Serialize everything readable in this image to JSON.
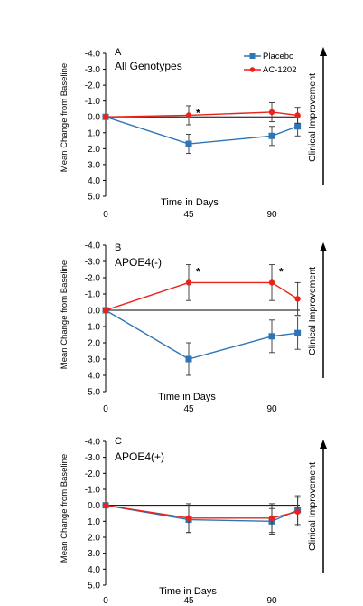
{
  "legend": {
    "placement": "top-right of panel A",
    "items": [
      {
        "label": "Placebo",
        "color": "#2e75b6",
        "marker": "square"
      },
      {
        "label": "AC-1202",
        "color": "#e8241a",
        "marker": "circle"
      }
    ]
  },
  "chart_data": [
    {
      "type": "line",
      "panel_letter": "A",
      "title": "All Genotypes",
      "xlabel": "Time in Days",
      "ylabel": "Mean Change from Baseline",
      "right_label": "Clinical Improvement",
      "x_ticks": [
        "0",
        "45",
        "90"
      ],
      "y_ticks": [
        "-4.0",
        "-3.0",
        "-2.0",
        "-1.0",
        "0.0",
        "1.0",
        "2.0",
        "3.0",
        "4.0",
        "5.0"
      ],
      "ylim": [
        -4.0,
        5.0
      ],
      "y_inverted": true,
      "x_days": [
        0,
        45,
        90,
        104
      ],
      "series": [
        {
          "name": "Placebo",
          "values": [
            0.0,
            1.7,
            1.2,
            0.6
          ],
          "errors": [
            0,
            0.6,
            0.6,
            0.6
          ]
        },
        {
          "name": "AC-1202",
          "values": [
            0.0,
            -0.1,
            -0.3,
            -0.1
          ],
          "errors": [
            0,
            0.6,
            0.6,
            0.5
          ]
        }
      ],
      "annotations": [
        {
          "x": 45,
          "text": "*"
        }
      ]
    },
    {
      "type": "line",
      "panel_letter": "B",
      "title": "APOE4(-)",
      "xlabel": "Time in Days",
      "ylabel": "Mean Change from Baseline",
      "right_label": "Clinical Improvement",
      "x_ticks": [
        "0",
        "45",
        "90"
      ],
      "y_ticks": [
        "-4.0",
        "-3.0",
        "-2.0",
        "-1.0",
        "0.0",
        "1.0",
        "2.0",
        "3.0",
        "4.0",
        "5.0"
      ],
      "ylim": [
        -4.0,
        5.0
      ],
      "y_inverted": true,
      "x_days": [
        0,
        45,
        90,
        104
      ],
      "series": [
        {
          "name": "Placebo",
          "values": [
            0.0,
            3.0,
            1.6,
            1.4
          ],
          "errors": [
            0,
            1.0,
            1.0,
            1.0
          ]
        },
        {
          "name": "AC-1202",
          "values": [
            0.0,
            -1.7,
            -1.7,
            -0.7
          ],
          "errors": [
            0,
            1.1,
            1.1,
            1.0
          ]
        }
      ],
      "annotations": [
        {
          "x": 45,
          "text": "*"
        },
        {
          "x": 90,
          "text": "*"
        }
      ]
    },
    {
      "type": "line",
      "panel_letter": "C",
      "title": "APOE4(+)",
      "xlabel": "Time in Days",
      "ylabel": "Mean Change from Baseline",
      "right_label": "Clinical Improvement",
      "x_ticks": [
        "0",
        "45",
        "90"
      ],
      "y_ticks": [
        "-4.0",
        "-3.0",
        "-2.0",
        "-1.0",
        "0.0",
        "1.0",
        "2.0",
        "3.0",
        "4.0",
        "5.0"
      ],
      "ylim": [
        -4.0,
        5.0
      ],
      "y_inverted": true,
      "x_days": [
        0,
        45,
        90,
        104
      ],
      "series": [
        {
          "name": "Placebo",
          "values": [
            0.0,
            0.9,
            1.0,
            0.3
          ],
          "errors": [
            0,
            0.8,
            0.8,
            0.9
          ]
        },
        {
          "name": "AC-1202",
          "values": [
            0.0,
            0.8,
            0.8,
            0.4
          ],
          "errors": [
            0,
            0.9,
            0.9,
            0.9
          ]
        }
      ],
      "annotations": []
    }
  ]
}
